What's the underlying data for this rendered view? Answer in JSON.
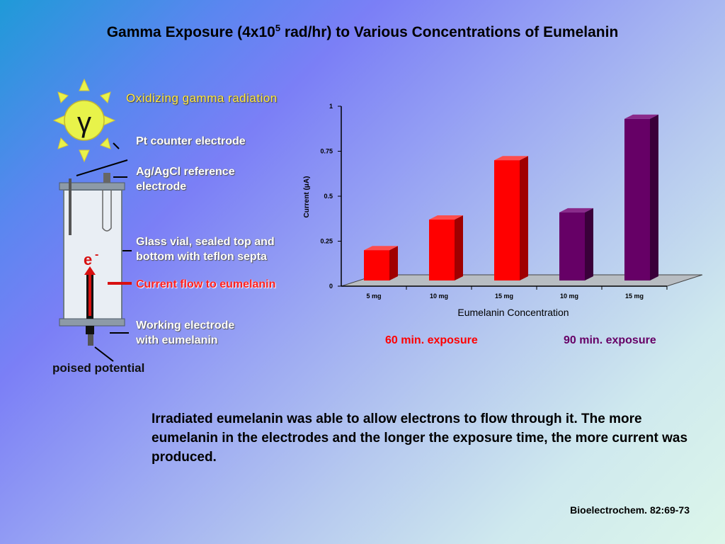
{
  "slide": {
    "title_main": "Gamma Exposure (4x10",
    "title_sup": "5",
    "title_rest": " rad/hr) to Various Concentrations of Eumelanin",
    "paragraph": "Irradiated eumelanin was able to allow electrons to flow through it. The more eumelanin in the electrodes and the longer the exposure time, the more current was produced.",
    "citation": "Bioelectrochem. 82:69-73"
  },
  "diagram": {
    "gamma_symbol": "γ",
    "radiation_label": "Oxidizing gamma radiation",
    "counter_electrode": "Pt counter electrode",
    "reference_line1": "Ag/AgCl reference",
    "reference_line2": "electrode",
    "vial_line1": "Glass vial, sealed top and",
    "vial_line2": "bottom with teflon septa",
    "current_flow": "Current flow to eumelanin",
    "working_line1": "Working electrode",
    "working_line2": "with eumelanin",
    "poised": "poised potential",
    "electron": "e",
    "electron_sup": "-",
    "colors": {
      "sun": "#e8f34a",
      "arrow": "#d81010",
      "radiation_label": "#ffe94a"
    }
  },
  "legend": {
    "exp60": "60 min. exposure",
    "exp90": "90 min. exposure",
    "exp60_color": "#ff0000",
    "exp90_color": "#660066"
  },
  "chart_data": {
    "type": "bar",
    "categories": [
      "5 mg",
      "10 mg",
      "15 mg",
      "10 mg",
      "15 mg"
    ],
    "values": [
      0.2,
      0.37,
      0.7,
      0.41,
      0.93
    ],
    "bar_colors": [
      "#ff0000",
      "#ff0000",
      "#ff0000",
      "#660066",
      "#660066"
    ],
    "ylabel": "Current (μA)",
    "xlabel": "Eumelanin Concentration",
    "yticks": [
      "0",
      "0.25",
      "0.5",
      "0.75",
      "1"
    ],
    "ylim": [
      0,
      1
    ],
    "grid": false
  }
}
